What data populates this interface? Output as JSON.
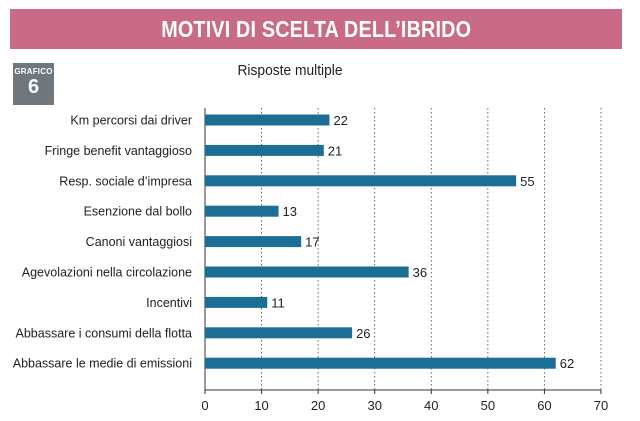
{
  "header": {
    "title": "MOTIVI DI SCELTA DELL’IBRIDO",
    "banner_color": "#c96a86"
  },
  "badge": {
    "label": "GRAFICO",
    "number": "6"
  },
  "chart_data": {
    "type": "bar",
    "orientation": "horizontal",
    "subtitle": "Risposte multiple",
    "categories": [
      "Km percorsi dai driver",
      "Fringe benefit vantaggioso",
      "Resp. sociale d’impresa",
      "Esenzione dal bollo",
      "Canoni vantaggiosi",
      "Agevolazioni nella circolazione",
      "Incentivi",
      "Abbassare i consumi della flotta",
      "Abbassare le medie di emissioni"
    ],
    "values": [
      22,
      21,
      55,
      13,
      17,
      36,
      11,
      26,
      62
    ],
    "xlim": [
      0,
      70
    ],
    "xticks": [
      0,
      10,
      20,
      30,
      40,
      50,
      60,
      70
    ],
    "bar_color": "#1b6e94",
    "grid": "vertical-dotted"
  }
}
